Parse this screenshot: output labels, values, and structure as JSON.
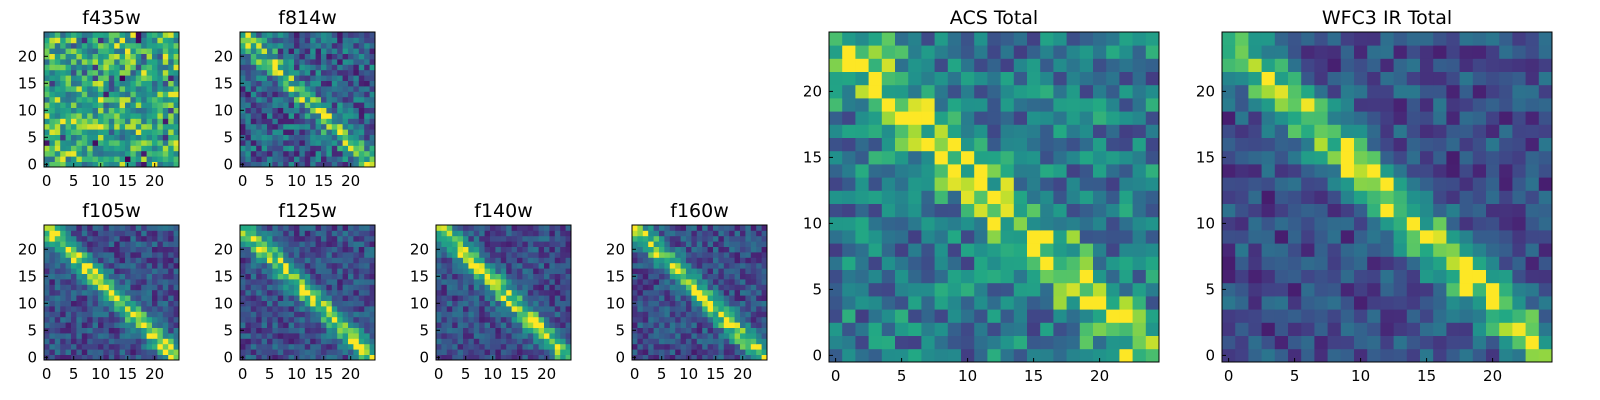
{
  "figure": {
    "colormap": "viridis",
    "colors": [
      "#440154",
      "#3b528b",
      "#21918c",
      "#5ec962",
      "#fde725"
    ],
    "panels": [
      {
        "id": "f435w",
        "title": "f435w",
        "xticks": [
          "0",
          "5",
          "10",
          "15",
          "20"
        ],
        "yticks": [
          "0",
          "5",
          "10",
          "15",
          "20"
        ],
        "pattern": "noise",
        "seed": 11
      },
      {
        "id": "f814w",
        "title": "f814w",
        "xticks": [
          "0",
          "5",
          "10",
          "15",
          "20"
        ],
        "yticks": [
          "0",
          "5",
          "10",
          "15",
          "20"
        ],
        "pattern": "diagonal-weak",
        "seed": 23
      },
      {
        "id": "f105w",
        "title": "f105w",
        "xticks": [
          "0",
          "5",
          "10",
          "15",
          "20"
        ],
        "yticks": [
          "0",
          "5",
          "10",
          "15",
          "20"
        ],
        "pattern": "diagonal-strong",
        "seed": 37
      },
      {
        "id": "f125w",
        "title": "f125w",
        "xticks": [
          "0",
          "5",
          "10",
          "15",
          "20"
        ],
        "yticks": [
          "0",
          "5",
          "10",
          "15",
          "20"
        ],
        "pattern": "diagonal-strong",
        "seed": 41
      },
      {
        "id": "f140w",
        "title": "f140w",
        "xticks": [
          "0",
          "5",
          "10",
          "15",
          "20"
        ],
        "yticks": [
          "0",
          "5",
          "10",
          "15",
          "20"
        ],
        "pattern": "diagonal-strong",
        "seed": 53
      },
      {
        "id": "f160w",
        "title": "f160w",
        "xticks": [
          "0",
          "5",
          "10",
          "15",
          "20"
        ],
        "yticks": [
          "0",
          "5",
          "10",
          "15",
          "20"
        ],
        "pattern": "diagonal-strong",
        "seed": 67
      },
      {
        "id": "acs-total",
        "title": "ACS Total",
        "xticks": [
          "0",
          "5",
          "10",
          "15",
          "20"
        ],
        "yticks": [
          "0",
          "5",
          "10",
          "15",
          "20"
        ],
        "pattern": "diagonal-medium",
        "seed": 71
      },
      {
        "id": "wfc3-ir-total",
        "title": "WFC3 IR Total",
        "xticks": [
          "0",
          "5",
          "10",
          "15",
          "20"
        ],
        "yticks": [
          "0",
          "5",
          "10",
          "15",
          "20"
        ],
        "pattern": "diagonal-strong",
        "seed": 89
      }
    ]
  },
  "chart_data": [
    {
      "type": "heatmap",
      "title": "f435w",
      "grid": [
        25,
        25
      ],
      "xlim": [
        0,
        24
      ],
      "ylim": [
        0,
        24
      ],
      "colormap": "viridis",
      "description_values": "mostly uniform high values with scattered low pixels"
    },
    {
      "type": "heatmap",
      "title": "f814w",
      "grid": [
        25,
        25
      ],
      "xlim": [
        0,
        24
      ],
      "ylim": [
        0,
        24
      ],
      "colormap": "viridis",
      "description_values": "faint anti-diagonal ridge"
    },
    {
      "type": "heatmap",
      "title": "f105w",
      "grid": [
        25,
        25
      ],
      "xlim": [
        0,
        24
      ],
      "ylim": [
        0,
        24
      ],
      "colormap": "viridis",
      "description_values": "strong anti-diagonal ridge"
    },
    {
      "type": "heatmap",
      "title": "f125w",
      "grid": [
        25,
        25
      ],
      "xlim": [
        0,
        24
      ],
      "ylim": [
        0,
        24
      ],
      "colormap": "viridis",
      "description_values": "strong anti-diagonal ridge"
    },
    {
      "type": "heatmap",
      "title": "f140w",
      "grid": [
        25,
        25
      ],
      "xlim": [
        0,
        24
      ],
      "ylim": [
        0,
        24
      ],
      "colormap": "viridis",
      "description_values": "strong anti-diagonal ridge"
    },
    {
      "type": "heatmap",
      "title": "f160w",
      "grid": [
        25,
        25
      ],
      "xlim": [
        0,
        24
      ],
      "ylim": [
        0,
        24
      ],
      "colormap": "viridis",
      "description_values": "strong anti-diagonal ridge"
    },
    {
      "type": "heatmap",
      "title": "ACS Total",
      "grid": [
        25,
        25
      ],
      "xlim": [
        0,
        24
      ],
      "ylim": [
        0,
        24
      ],
      "colormap": "viridis",
      "description_values": "moderate anti-diagonal ridge on noisy background"
    },
    {
      "type": "heatmap",
      "title": "WFC3 IR Total",
      "grid": [
        25,
        25
      ],
      "xlim": [
        0,
        24
      ],
      "ylim": [
        0,
        24
      ],
      "colormap": "viridis",
      "description_values": "strong anti-diagonal ridge"
    }
  ]
}
